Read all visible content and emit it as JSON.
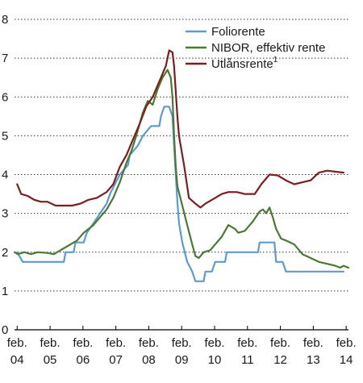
{
  "chart_data": {
    "type": "line",
    "title": "",
    "xlabel": "",
    "ylabel": "",
    "ylim": [
      0,
      8
    ],
    "yticks": [
      0,
      1,
      2,
      3,
      4,
      5,
      6,
      7,
      8
    ],
    "xlim": [
      2004.0,
      2014.15
    ],
    "x_tick_labels": [
      {
        "x": 2004.08,
        "line1": "feb.",
        "line2": "04"
      },
      {
        "x": 2005.08,
        "line1": "feb.",
        "line2": "05"
      },
      {
        "x": 2006.08,
        "line1": "feb.",
        "line2": "06"
      },
      {
        "x": 2007.08,
        "line1": "feb.",
        "line2": "07"
      },
      {
        "x": 2008.08,
        "line1": "feb.",
        "line2": "08"
      },
      {
        "x": 2009.08,
        "line1": "feb.",
        "line2": "09"
      },
      {
        "x": 2010.08,
        "line1": "feb.",
        "line2": "10"
      },
      {
        "x": 2011.08,
        "line1": "feb.",
        "line2": "11"
      },
      {
        "x": 2012.08,
        "line1": "feb.",
        "line2": "12"
      },
      {
        "x": 2013.08,
        "line1": "feb.",
        "line2": "13"
      },
      {
        "x": 2014.08,
        "line1": "feb.",
        "line2": "14"
      }
    ],
    "grid": "horizontal dotted",
    "legend_position": "top-right",
    "series": [
      {
        "name": "Foliorente",
        "superscript": "",
        "color": "#5b9bd5",
        "points": [
          [
            2004.08,
            2.0
          ],
          [
            2004.25,
            1.75
          ],
          [
            2005.5,
            1.75
          ],
          [
            2005.55,
            2.0
          ],
          [
            2005.8,
            2.0
          ],
          [
            2005.85,
            2.25
          ],
          [
            2006.1,
            2.25
          ],
          [
            2006.2,
            2.5
          ],
          [
            2006.4,
            2.75
          ],
          [
            2006.6,
            3.0
          ],
          [
            2006.8,
            3.25
          ],
          [
            2006.9,
            3.5
          ],
          [
            2007.05,
            3.75
          ],
          [
            2007.2,
            4.0
          ],
          [
            2007.45,
            4.25
          ],
          [
            2007.5,
            4.5
          ],
          [
            2007.75,
            4.75
          ],
          [
            2007.9,
            5.0
          ],
          [
            2008.15,
            5.25
          ],
          [
            2008.4,
            5.25
          ],
          [
            2008.45,
            5.5
          ],
          [
            2008.55,
            5.75
          ],
          [
            2008.7,
            5.75
          ],
          [
            2008.8,
            5.5
          ],
          [
            2008.85,
            4.75
          ],
          [
            2008.9,
            4.0
          ],
          [
            2008.95,
            3.3
          ],
          [
            2009.0,
            2.75
          ],
          [
            2009.1,
            2.25
          ],
          [
            2009.25,
            1.75
          ],
          [
            2009.4,
            1.5
          ],
          [
            2009.5,
            1.25
          ],
          [
            2009.75,
            1.25
          ],
          [
            2009.8,
            1.5
          ],
          [
            2010.0,
            1.5
          ],
          [
            2010.1,
            1.75
          ],
          [
            2010.4,
            1.75
          ],
          [
            2010.45,
            2.0
          ],
          [
            2011.4,
            2.0
          ],
          [
            2011.45,
            2.25
          ],
          [
            2011.9,
            2.25
          ],
          [
            2011.95,
            1.75
          ],
          [
            2012.15,
            1.75
          ],
          [
            2012.25,
            1.5
          ],
          [
            2014.0,
            1.5
          ]
        ]
      },
      {
        "name": "NIBOR, effektiv rente",
        "superscript": "",
        "color": "#4a7a32",
        "points": [
          [
            2004.0,
            2.0
          ],
          [
            2004.1,
            1.95
          ],
          [
            2004.3,
            2.0
          ],
          [
            2004.5,
            1.95
          ],
          [
            2004.7,
            2.0
          ],
          [
            2005.0,
            1.98
          ],
          [
            2005.2,
            1.95
          ],
          [
            2005.4,
            2.05
          ],
          [
            2005.6,
            2.15
          ],
          [
            2005.9,
            2.3
          ],
          [
            2006.1,
            2.5
          ],
          [
            2006.4,
            2.7
          ],
          [
            2006.6,
            2.9
          ],
          [
            2006.8,
            3.1
          ],
          [
            2007.0,
            3.4
          ],
          [
            2007.2,
            3.8
          ],
          [
            2007.4,
            4.3
          ],
          [
            2007.55,
            4.6
          ],
          [
            2007.7,
            5.0
          ],
          [
            2007.9,
            5.6
          ],
          [
            2008.05,
            5.9
          ],
          [
            2008.2,
            5.8
          ],
          [
            2008.35,
            6.2
          ],
          [
            2008.5,
            6.5
          ],
          [
            2008.65,
            6.7
          ],
          [
            2008.75,
            6.5
          ],
          [
            2008.8,
            6.0
          ],
          [
            2008.85,
            5.0
          ],
          [
            2008.9,
            4.2
          ],
          [
            2008.95,
            3.7
          ],
          [
            2009.1,
            3.2
          ],
          [
            2009.25,
            2.7
          ],
          [
            2009.4,
            2.2
          ],
          [
            2009.5,
            1.9
          ],
          [
            2009.6,
            1.85
          ],
          [
            2009.75,
            2.0
          ],
          [
            2009.95,
            2.05
          ],
          [
            2010.1,
            2.2
          ],
          [
            2010.3,
            2.4
          ],
          [
            2010.5,
            2.7
          ],
          [
            2010.7,
            2.6
          ],
          [
            2010.8,
            2.5
          ],
          [
            2011.0,
            2.55
          ],
          [
            2011.25,
            2.8
          ],
          [
            2011.45,
            3.05
          ],
          [
            2011.55,
            3.1
          ],
          [
            2011.65,
            3.0
          ],
          [
            2011.75,
            3.15
          ],
          [
            2011.85,
            2.9
          ],
          [
            2011.95,
            2.6
          ],
          [
            2012.1,
            2.35
          ],
          [
            2012.25,
            2.3
          ],
          [
            2012.5,
            2.2
          ],
          [
            2012.75,
            1.95
          ],
          [
            2013.0,
            1.85
          ],
          [
            2013.25,
            1.75
          ],
          [
            2013.5,
            1.7
          ],
          [
            2013.75,
            1.65
          ],
          [
            2013.9,
            1.6
          ],
          [
            2014.0,
            1.65
          ],
          [
            2014.15,
            1.6
          ]
        ]
      },
      {
        "name": "Utlånsrente",
        "superscript": "1",
        "color": "#7f1d1d",
        "points": [
          [
            2004.08,
            3.75
          ],
          [
            2004.2,
            3.5
          ],
          [
            2004.4,
            3.45
          ],
          [
            2004.6,
            3.35
          ],
          [
            2004.8,
            3.3
          ],
          [
            2005.0,
            3.3
          ],
          [
            2005.25,
            3.2
          ],
          [
            2005.5,
            3.2
          ],
          [
            2005.75,
            3.2
          ],
          [
            2006.0,
            3.25
          ],
          [
            2006.25,
            3.35
          ],
          [
            2006.5,
            3.4
          ],
          [
            2006.8,
            3.55
          ],
          [
            2007.0,
            3.75
          ],
          [
            2007.2,
            4.2
          ],
          [
            2007.4,
            4.5
          ],
          [
            2007.6,
            4.9
          ],
          [
            2007.8,
            5.3
          ],
          [
            2008.0,
            5.75
          ],
          [
            2008.2,
            6.0
          ],
          [
            2008.4,
            6.4
          ],
          [
            2008.6,
            6.8
          ],
          [
            2008.7,
            7.2
          ],
          [
            2008.8,
            7.15
          ],
          [
            2008.85,
            6.8
          ],
          [
            2008.95,
            5.5
          ],
          [
            2009.0,
            5.0
          ],
          [
            2009.15,
            4.25
          ],
          [
            2009.3,
            3.4
          ],
          [
            2009.5,
            3.25
          ],
          [
            2009.65,
            3.15
          ],
          [
            2009.8,
            3.25
          ],
          [
            2010.0,
            3.35
          ],
          [
            2010.3,
            3.5
          ],
          [
            2010.5,
            3.55
          ],
          [
            2010.75,
            3.55
          ],
          [
            2011.0,
            3.5
          ],
          [
            2011.3,
            3.5
          ],
          [
            2011.5,
            3.75
          ],
          [
            2011.75,
            4.0
          ],
          [
            2012.0,
            3.98
          ],
          [
            2012.25,
            3.85
          ],
          [
            2012.5,
            3.75
          ],
          [
            2012.75,
            3.8
          ],
          [
            2013.0,
            3.85
          ],
          [
            2013.25,
            4.05
          ],
          [
            2013.5,
            4.1
          ],
          [
            2014.0,
            4.05
          ]
        ]
      }
    ]
  }
}
